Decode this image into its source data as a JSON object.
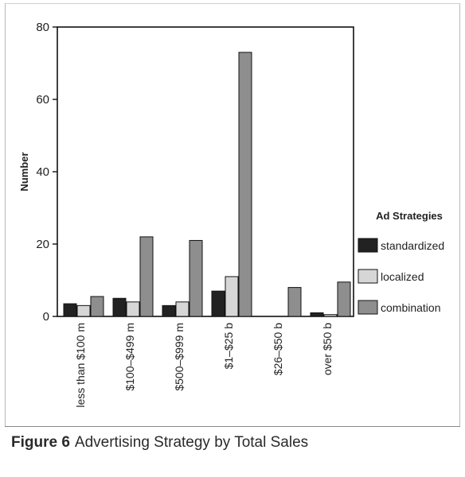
{
  "chart_data": {
    "type": "bar",
    "title": "",
    "ylabel": "Number",
    "xlabel": "",
    "ylim": [
      0,
      80
    ],
    "yticks": [
      0,
      20,
      40,
      60,
      80
    ],
    "categories": [
      "less than $100 m",
      "$100–$499 m",
      "$500–$999 m",
      "$1–$25 b",
      "$26–$50 b",
      "over $50 b"
    ],
    "series": [
      {
        "name": "standardized",
        "color": "#222222",
        "values": [
          3.5,
          5,
          3,
          7,
          0,
          1
        ]
      },
      {
        "name": "localized",
        "color": "#d6d6d6",
        "values": [
          3,
          4,
          4,
          11,
          0,
          0.5
        ]
      },
      {
        "name": "combination",
        "color": "#8e8e8e",
        "values": [
          5.5,
          22,
          21,
          73,
          8,
          9.5
        ]
      }
    ],
    "legend": {
      "title": "Ad Strategies",
      "position": "right"
    },
    "grid": false
  },
  "caption": {
    "number": "Figure 6",
    "text": "Advertising Strategy by Total Sales"
  }
}
